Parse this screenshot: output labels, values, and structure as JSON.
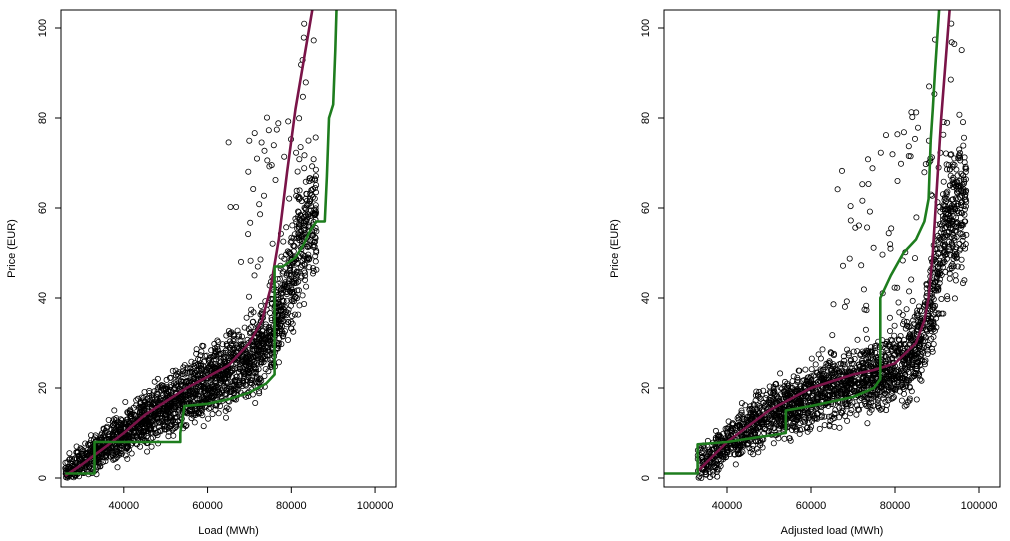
{
  "chart_data": [
    {
      "type": "scatter",
      "xlabel": "Load (MWh)",
      "ylabel": "Price (EUR)",
      "xlim": [
        25000,
        105000
      ],
      "ylim": [
        -2,
        104
      ],
      "x_ticks": [
        {
          "value": 40000,
          "label": "40000"
        },
        {
          "value": 60000,
          "label": "60000"
        },
        {
          "value": 80000,
          "label": "80000"
        },
        {
          "value": 100000,
          "label": "100000"
        }
      ],
      "y_ticks": [
        {
          "value": 0,
          "label": "0"
        },
        {
          "value": 20,
          "label": "20"
        },
        {
          "value": 40,
          "label": "40"
        },
        {
          "value": 60,
          "label": "60"
        },
        {
          "value": 80,
          "label": "80"
        },
        {
          "value": 100,
          "label": "100"
        }
      ],
      "grid": false,
      "marker_color": "#000000",
      "series": [
        {
          "type": "line",
          "color": "#7a1448",
          "points": [
            [
              26000,
              0.5
            ],
            [
              30000,
              3
            ],
            [
              35000,
              6.5
            ],
            [
              40000,
              10
            ],
            [
              45000,
              14
            ],
            [
              50000,
              17
            ],
            [
              55000,
              20
            ],
            [
              60000,
              22.5
            ],
            [
              65000,
              25
            ],
            [
              70000,
              30
            ],
            [
              73000,
              35
            ],
            [
              75000,
              42
            ],
            [
              77000,
              53
            ],
            [
              79000,
              68
            ],
            [
              81000,
              82
            ],
            [
              83000,
              93
            ],
            [
              85000,
              104
            ]
          ]
        },
        {
          "type": "line",
          "color": "#1e7d1e",
          "points": [
            [
              26000,
              1
            ],
            [
              33000,
              1
            ],
            [
              33000,
              8
            ],
            [
              53500,
              8
            ],
            [
              53500,
              10
            ],
            [
              54500,
              16
            ],
            [
              60000,
              16.5
            ],
            [
              65000,
              17.5
            ],
            [
              70000,
              19
            ],
            [
              74000,
              21
            ],
            [
              76000,
              23
            ],
            [
              76000,
              47
            ],
            [
              78000,
              47
            ],
            [
              81000,
              49
            ],
            [
              83000,
              52
            ],
            [
              84500,
              55
            ],
            [
              86000,
              57
            ],
            [
              88000,
              57
            ],
            [
              88500,
              67
            ],
            [
              89000,
              80
            ],
            [
              90000,
              83
            ],
            [
              90500,
              95
            ],
            [
              90800,
              104
            ]
          ]
        }
      ]
    },
    {
      "type": "scatter",
      "xlabel": "Adjusted load (MWh)",
      "ylabel": "Price (EUR)",
      "xlim": [
        25000,
        105000
      ],
      "ylim": [
        -2,
        104
      ],
      "x_ticks": [
        {
          "value": 40000,
          "label": "40000"
        },
        {
          "value": 60000,
          "label": "60000"
        },
        {
          "value": 80000,
          "label": "80000"
        },
        {
          "value": 100000,
          "label": "100000"
        }
      ],
      "y_ticks": [
        {
          "value": 0,
          "label": "0"
        },
        {
          "value": 20,
          "label": "20"
        },
        {
          "value": 40,
          "label": "40"
        },
        {
          "value": 60,
          "label": "60"
        },
        {
          "value": 80,
          "label": "80"
        },
        {
          "value": 100,
          "label": "100"
        }
      ],
      "grid": false,
      "marker_color": "#000000",
      "series": [
        {
          "type": "line",
          "color": "#7a1448",
          "points": [
            [
              33000,
              1.5
            ],
            [
              40000,
              8
            ],
            [
              50000,
              15
            ],
            [
              60000,
              20
            ],
            [
              70000,
              23
            ],
            [
              75000,
              24
            ],
            [
              80000,
              25.5
            ],
            [
              85000,
              30
            ],
            [
              87000,
              35
            ],
            [
              88000,
              40
            ],
            [
              89000,
              50
            ],
            [
              90000,
              65
            ],
            [
              91000,
              80
            ],
            [
              92000,
              92
            ],
            [
              93000,
              104
            ]
          ]
        },
        {
          "type": "line",
          "color": "#1e7d1e",
          "points": [
            [
              25000,
              1
            ],
            [
              33000,
              1
            ],
            [
              33000,
              7.5
            ],
            [
              40000,
              8
            ],
            [
              54000,
              10
            ],
            [
              54000,
              15
            ],
            [
              60000,
              16
            ],
            [
              65000,
              17
            ],
            [
              70000,
              18
            ],
            [
              75000,
              20
            ],
            [
              76500,
              22
            ],
            [
              76500,
              40
            ],
            [
              79000,
              45
            ],
            [
              82000,
              50
            ],
            [
              85000,
              53
            ],
            [
              87000,
              57
            ],
            [
              88000,
              62
            ],
            [
              88500,
              75
            ],
            [
              89000,
              82
            ],
            [
              89500,
              90
            ],
            [
              90000,
              97
            ],
            [
              90500,
              104
            ]
          ]
        }
      ]
    }
  ]
}
